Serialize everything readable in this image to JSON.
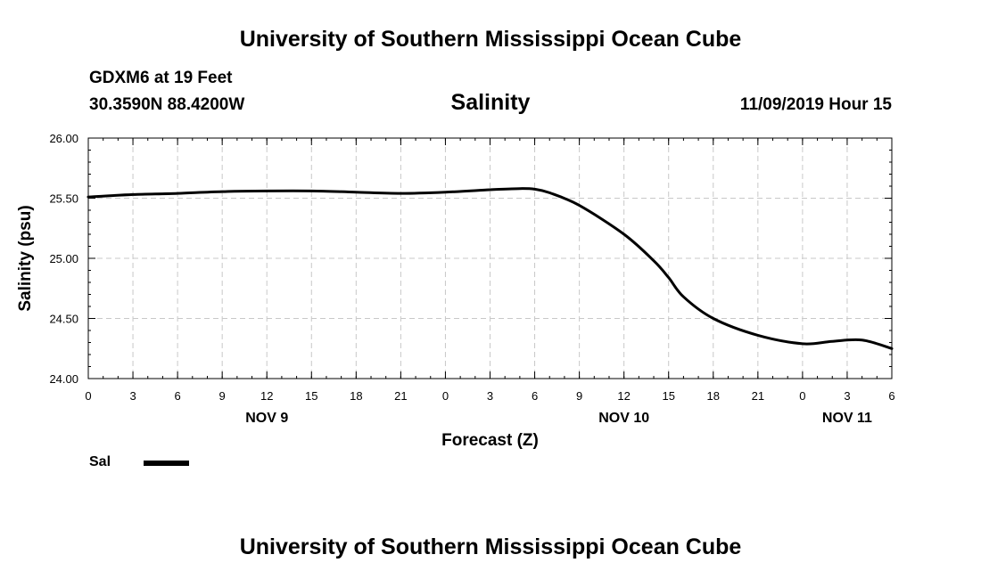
{
  "header": {
    "org_title": "University of Southern Mississippi Ocean Cube",
    "station": "GDXM6 at 19 Feet",
    "coords": "30.3590N 88.4200W",
    "issued": "11/09/2019 Hour 15"
  },
  "footer": {
    "org_title": "University of Southern Mississippi Ocean Cube"
  },
  "chart_data": {
    "type": "line",
    "title": "Salinity",
    "xlabel": "Forecast (Z)",
    "ylabel": "Salinity (psu)",
    "xlim": [
      0,
      54
    ],
    "ylim": [
      24.0,
      26.0
    ],
    "grid": true,
    "x_ticks": [
      0,
      3,
      6,
      9,
      12,
      15,
      18,
      21,
      24,
      27,
      30,
      33,
      36,
      39,
      42,
      45,
      48,
      51,
      54
    ],
    "x_tick_labels": [
      "0",
      "3",
      "6",
      "9",
      "12",
      "15",
      "18",
      "21",
      "0",
      "3",
      "6",
      "9",
      "12",
      "15",
      "18",
      "21",
      "0",
      "3",
      "6"
    ],
    "y_ticks": [
      24.0,
      24.5,
      25.0,
      25.5,
      26.0
    ],
    "y_tick_labels": [
      "24.00",
      "24.50",
      "25.00",
      "25.50",
      "26.00"
    ],
    "day_labels": [
      {
        "x": 12,
        "label": "NOV 9"
      },
      {
        "x": 36,
        "label": "NOV 10"
      },
      {
        "x": 51,
        "label": "NOV 11"
      }
    ],
    "series": [
      {
        "name": "Sal",
        "color": "#000000",
        "x": [
          0,
          3,
          6,
          9,
          12,
          15,
          18,
          21,
          24,
          27,
          29,
          30,
          31,
          33,
          36,
          38,
          39,
          40,
          42,
          45,
          48,
          50,
          52,
          54
        ],
        "values": [
          25.51,
          25.53,
          25.54,
          25.555,
          25.56,
          25.56,
          25.55,
          25.54,
          25.55,
          25.57,
          25.58,
          25.575,
          25.545,
          25.44,
          25.2,
          24.98,
          24.84,
          24.68,
          24.5,
          24.36,
          24.29,
          24.31,
          24.32,
          24.25
        ]
      }
    ],
    "legend": {
      "placement": "bottom-left",
      "label": "Sal"
    }
  }
}
